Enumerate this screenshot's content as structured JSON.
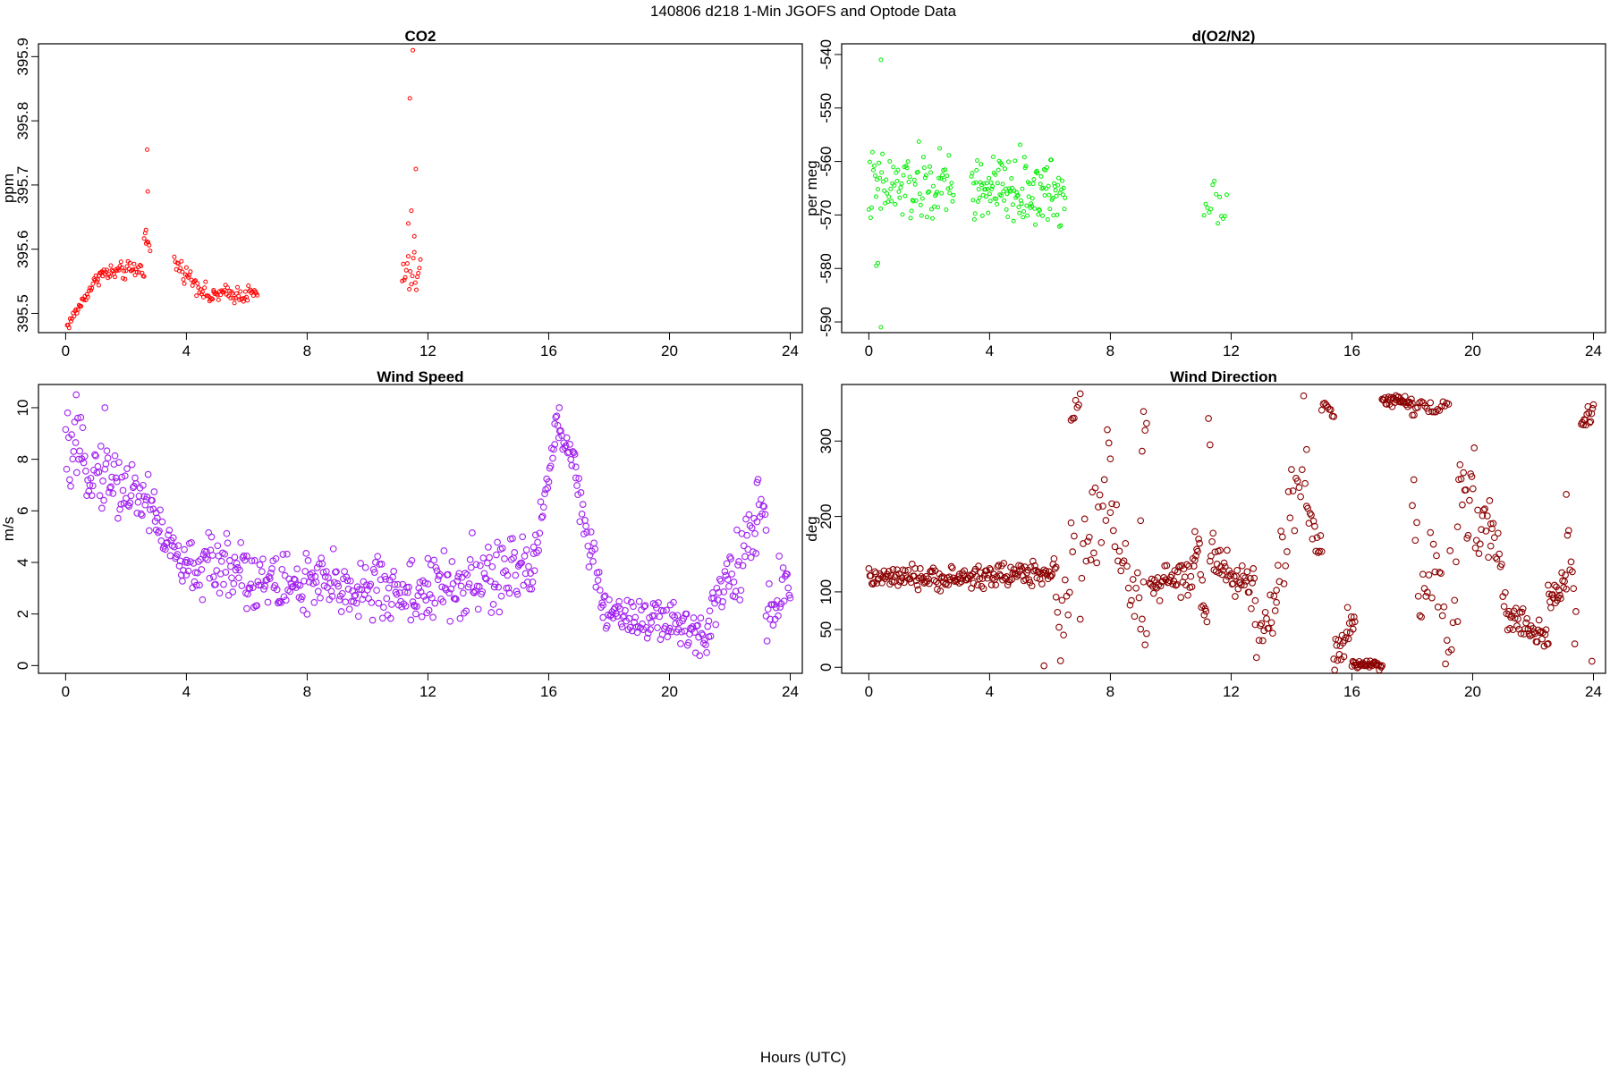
{
  "figure": {
    "title": "140806   d218   1-Min  JGOFS and Optode Data",
    "xlabel": "Hours (UTC)"
  },
  "chart_data": [
    {
      "type": "scatter",
      "title": "CO2",
      "ylabel": "ppm",
      "xlim": [
        -0.9,
        24.4
      ],
      "ylim": [
        395.47,
        395.92
      ],
      "xticks": [
        0,
        4,
        8,
        12,
        16,
        20,
        24
      ],
      "yticks": [
        395.5,
        395.6,
        395.7,
        395.8,
        395.9
      ],
      "ytick_labels": [
        "395.5",
        "395.6",
        "395.7",
        "395.8",
        "395.9"
      ],
      "color": "#ff0000",
      "marker_size": "small",
      "series": [
        {
          "segments": [
            {
              "x_start": 0.05,
              "x_end": 1.1,
              "y_start": 395.48,
              "y_end": 395.56,
              "step": 0.0333,
              "noise": 0.008
            },
            {
              "x_start": 1.1,
              "x_end": 2.6,
              "y_start": 395.56,
              "y_end": 395.57,
              "step": 0.0333,
              "noise": 0.012
            },
            {
              "x_start": 2.6,
              "x_end": 2.8,
              "y_start": 395.62,
              "y_end": 395.6,
              "step": 0.0333,
              "noise": 0.01
            },
            {
              "x_start": 3.6,
              "x_end": 4.9,
              "y_start": 395.58,
              "y_end": 395.52,
              "step": 0.0333,
              "noise": 0.012
            },
            {
              "x_start": 4.9,
              "x_end": 6.35,
              "y_start": 395.53,
              "y_end": 395.53,
              "step": 0.0333,
              "noise": 0.012
            },
            {
              "x_start": 11.15,
              "x_end": 11.75,
              "y_start": 395.56,
              "y_end": 395.56,
              "step": 0.0333,
              "noise": 0.03
            }
          ],
          "outliers": [
            {
              "x": 2.7,
              "y": 395.755
            },
            {
              "x": 2.72,
              "y": 395.69
            },
            {
              "x": 2.66,
              "y": 395.63
            },
            {
              "x": 11.5,
              "y": 395.91
            },
            {
              "x": 11.4,
              "y": 395.835
            },
            {
              "x": 11.6,
              "y": 395.725
            },
            {
              "x": 11.45,
              "y": 395.66
            },
            {
              "x": 11.55,
              "y": 395.62
            },
            {
              "x": 11.35,
              "y": 395.64
            }
          ]
        }
      ]
    },
    {
      "type": "scatter",
      "title": "d(O2/N2)",
      "ylabel": "per meg",
      "xlim": [
        -0.9,
        24.4
      ],
      "ylim": [
        -592,
        -538
      ],
      "xticks": [
        0,
        4,
        8,
        12,
        16,
        20,
        24
      ],
      "yticks": [
        -590,
        -580,
        -570,
        -560,
        -550,
        -540
      ],
      "ytick_labels": [
        "-590",
        "-580",
        "-570",
        "-560",
        "-550",
        "-540"
      ],
      "color": "#00ee00",
      "marker_size": "small",
      "series": [
        {
          "segments": [
            {
              "x_start": 0.0,
              "x_end": 2.8,
              "y_start": -565,
              "y_end": -565,
              "step": 0.03,
              "noise": 6
            },
            {
              "x_start": 3.4,
              "x_end": 6.5,
              "y_start": -565,
              "y_end": -566,
              "step": 0.024,
              "noise": 5.5
            },
            {
              "x_start": 11.1,
              "x_end": 11.85,
              "y_start": -567,
              "y_end": -567,
              "step": 0.06,
              "noise": 4
            }
          ],
          "outliers": [
            {
              "x": 0.4,
              "y": -541
            },
            {
              "x": 0.4,
              "y": -591
            },
            {
              "x": 0.25,
              "y": -579.5
            },
            {
              "x": 0.3,
              "y": -579
            }
          ]
        }
      ]
    },
    {
      "type": "scatter",
      "title": "Wind Speed",
      "ylabel": "m/s",
      "xlim": [
        -0.9,
        24.4
      ],
      "ylim": [
        -0.3,
        10.9
      ],
      "xticks": [
        0,
        4,
        8,
        12,
        16,
        20,
        24
      ],
      "yticks": [
        0,
        2,
        4,
        6,
        8,
        10
      ],
      "ytick_labels": [
        "0",
        "2",
        "4",
        "6",
        "8",
        "10"
      ],
      "color": "#a020f0",
      "marker_size": "large",
      "series": [
        {
          "segments": [
            {
              "x_start": 0.0,
              "x_end": 3.0,
              "y_start": 8.3,
              "y_end": 6.2,
              "step": 0.0333,
              "noise": 1.1
            },
            {
              "x_start": 3.0,
              "x_end": 4.0,
              "y_start": 5.5,
              "y_end": 3.6,
              "step": 0.0333,
              "noise": 0.8
            },
            {
              "x_start": 4.0,
              "x_end": 6.0,
              "y_start": 3.8,
              "y_end": 3.9,
              "step": 0.0333,
              "noise": 1.0
            },
            {
              "x_start": 6.0,
              "x_end": 12.0,
              "y_start": 3.3,
              "y_end": 2.8,
              "step": 0.0333,
              "noise": 1.1
            },
            {
              "x_start": 12.0,
              "x_end": 15.5,
              "y_start": 2.8,
              "y_end": 3.8,
              "step": 0.0333,
              "noise": 1.3
            },
            {
              "x_start": 15.5,
              "x_end": 16.2,
              "y_start": 4.2,
              "y_end": 8.8,
              "step": 0.0333,
              "noise": 0.7
            },
            {
              "x_start": 16.2,
              "x_end": 16.9,
              "y_start": 9.3,
              "y_end": 8.0,
              "step": 0.0333,
              "noise": 0.5
            },
            {
              "x_start": 16.9,
              "x_end": 17.8,
              "y_start": 7.0,
              "y_end": 2.2,
              "step": 0.0333,
              "noise": 0.8
            },
            {
              "x_start": 17.8,
              "x_end": 21.3,
              "y_start": 2.2,
              "y_end": 1.2,
              "step": 0.0333,
              "noise": 0.8
            },
            {
              "x_start": 21.3,
              "x_end": 22.9,
              "y_start": 2.3,
              "y_end": 5.2,
              "step": 0.0333,
              "noise": 1.1
            },
            {
              "x_start": 22.9,
              "x_end": 23.2,
              "y_start": 6.5,
              "y_end": 5.5,
              "step": 0.0333,
              "noise": 0.7
            },
            {
              "x_start": 23.2,
              "x_end": 24.0,
              "y_start": 2.0,
              "y_end": 3.5,
              "step": 0.0333,
              "noise": 1.3
            }
          ],
          "outliers": [
            {
              "x": 0.35,
              "y": 10.5
            },
            {
              "x": 1.3,
              "y": 10.0
            },
            {
              "x": 16.35,
              "y": 10.0
            }
          ]
        }
      ]
    },
    {
      "type": "scatter",
      "title": "Wind Direction",
      "ylabel": "deg",
      "xlim": [
        -0.9,
        24.4
      ],
      "ylim": [
        -8,
        375
      ],
      "xticks": [
        0,
        4,
        8,
        12,
        16,
        20,
        24
      ],
      "yticks": [
        0,
        50,
        100,
        200,
        300
      ],
      "ytick_labels": [
        "0",
        "50",
        "100",
        "200",
        "300"
      ],
      "color": "#8b0000",
      "marker_size": "large",
      "series": [
        {
          "segments": [
            {
              "x_start": 0.0,
              "x_end": 3.0,
              "y_start": 118,
              "y_end": 118,
              "step": 0.0333,
              "noise": 12
            },
            {
              "x_start": 3.0,
              "x_end": 6.2,
              "y_start": 118,
              "y_end": 128,
              "step": 0.0333,
              "noise": 14
            },
            {
              "x_start": 6.2,
              "x_end": 6.8,
              "y_start": 40,
              "y_end": 150,
              "step": 0.05,
              "noise": 60
            },
            {
              "x_start": 6.7,
              "x_end": 7.0,
              "y_start": 330,
              "y_end": 360,
              "step": 0.05,
              "noise": 10
            },
            {
              "x_start": 7.0,
              "x_end": 8.0,
              "y_start": 100,
              "y_end": 260,
              "step": 0.05,
              "noise": 70
            },
            {
              "x_start": 8.0,
              "x_end": 9.2,
              "y_start": 190,
              "y_end": 50,
              "step": 0.05,
              "noise": 50
            },
            {
              "x_start": 9.0,
              "x_end": 9.2,
              "y_start": 230,
              "y_end": 340,
              "step": 0.05,
              "noise": 40
            },
            {
              "x_start": 9.3,
              "x_end": 10.8,
              "y_start": 110,
              "y_end": 120,
              "step": 0.0333,
              "noise": 20
            },
            {
              "x_start": 10.8,
              "x_end": 11.2,
              "y_start": 170,
              "y_end": 60,
              "step": 0.03,
              "noise": 30
            },
            {
              "x_start": 11.3,
              "x_end": 12.8,
              "y_start": 150,
              "y_end": 100,
              "step": 0.0333,
              "noise": 25
            },
            {
              "x_start": 12.8,
              "x_end": 13.5,
              "y_start": 30,
              "y_end": 70,
              "step": 0.04,
              "noise": 30
            },
            {
              "x_start": 13.5,
              "x_end": 14.5,
              "y_start": 100,
              "y_end": 300,
              "step": 0.05,
              "noise": 70
            },
            {
              "x_start": 14.5,
              "x_end": 15.0,
              "y_start": 200,
              "y_end": 170,
              "step": 0.04,
              "noise": 25
            },
            {
              "x_start": 15.0,
              "x_end": 15.4,
              "y_start": 350,
              "y_end": 340,
              "step": 0.05,
              "noise": 10
            },
            {
              "x_start": 15.4,
              "x_end": 16.1,
              "y_start": 10,
              "y_end": 60,
              "step": 0.03,
              "noise": 25
            },
            {
              "x_start": 16.0,
              "x_end": 17.0,
              "y_start": 5,
              "y_end": 2,
              "step": 0.03,
              "noise": 4
            },
            {
              "x_start": 17.0,
              "x_end": 18.0,
              "y_start": 355,
              "y_end": 352,
              "step": 0.03,
              "noise": 6
            },
            {
              "x_start": 18.0,
              "x_end": 19.5,
              "y_start": 180,
              "y_end": 20,
              "step": 0.05,
              "noise": 90
            },
            {
              "x_start": 18.0,
              "x_end": 19.2,
              "y_start": 340,
              "y_end": 345,
              "step": 0.06,
              "noise": 12
            },
            {
              "x_start": 19.5,
              "x_end": 20.6,
              "y_start": 250,
              "y_end": 180,
              "step": 0.04,
              "noise": 60
            },
            {
              "x_start": 20.6,
              "x_end": 21.2,
              "y_start": 190,
              "y_end": 60,
              "step": 0.04,
              "noise": 35
            },
            {
              "x_start": 21.2,
              "x_end": 22.5,
              "y_start": 70,
              "y_end": 35,
              "step": 0.0333,
              "noise": 18
            },
            {
              "x_start": 22.5,
              "x_end": 23.1,
              "y_start": 80,
              "y_end": 120,
              "step": 0.03,
              "noise": 20
            },
            {
              "x_start": 23.1,
              "x_end": 23.5,
              "y_start": 180,
              "y_end": 20,
              "step": 0.04,
              "noise": 50
            },
            {
              "x_start": 23.6,
              "x_end": 24.0,
              "y_start": 320,
              "y_end": 345,
              "step": 0.03,
              "noise": 10
            }
          ],
          "outliers": [
            {
              "x": 5.8,
              "y": 2
            },
            {
              "x": 23.95,
              "y": 8
            },
            {
              "x": 11.3,
              "y": 295
            },
            {
              "x": 11.25,
              "y": 330
            }
          ]
        }
      ]
    }
  ]
}
